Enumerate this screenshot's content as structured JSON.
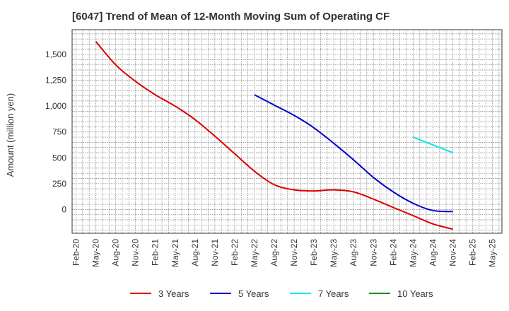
{
  "chart_data": {
    "type": "line",
    "title": "[6047]  Trend of Mean of 12-Month Moving Sum of Operating CF",
    "xlabel": "",
    "ylabel": "Amount (million yen)",
    "ylim": [
      -230,
      1740
    ],
    "grid": true,
    "legend_position": "bottom",
    "x_ticks": [
      "Feb-20",
      "May-20",
      "Aug-20",
      "Nov-20",
      "Feb-21",
      "May-21",
      "Aug-21",
      "Nov-21",
      "Feb-22",
      "May-22",
      "Aug-22",
      "Nov-22",
      "Feb-23",
      "May-23",
      "Aug-23",
      "Nov-23",
      "Feb-24",
      "May-24",
      "Aug-24",
      "Nov-24",
      "Feb-25",
      "May-25"
    ],
    "y_ticks": [
      0,
      250,
      500,
      750,
      1000,
      1250,
      1500
    ],
    "y_tick_labels": [
      "0",
      "250",
      "500",
      "750",
      "1,000",
      "1,250",
      "1,500"
    ],
    "series": [
      {
        "name": "3 Years",
        "color": "#dd0000",
        "x": [
          "May-20",
          "Aug-20",
          "Nov-20",
          "Feb-21",
          "May-21",
          "Aug-21",
          "Nov-21",
          "Feb-22",
          "May-22",
          "Aug-22",
          "Nov-22",
          "Feb-23",
          "May-23",
          "Aug-23",
          "Nov-23",
          "Feb-24",
          "May-24",
          "Aug-24",
          "Nov-24"
        ],
        "values": [
          1625,
          1400,
          1240,
          1110,
          1000,
          870,
          710,
          540,
          370,
          240,
          190,
          180,
          190,
          170,
          100,
          20,
          -60,
          -140,
          -190
        ]
      },
      {
        "name": "5 Years",
        "color": "#0000cc",
        "x": [
          "May-22",
          "Aug-22",
          "Nov-22",
          "Feb-23",
          "May-23",
          "Aug-23",
          "Nov-23",
          "Feb-24",
          "May-24",
          "Aug-24",
          "Nov-24"
        ],
        "values": [
          1110,
          1010,
          910,
          790,
          640,
          480,
          310,
          170,
          60,
          -10,
          -20
        ]
      },
      {
        "name": "7 Years",
        "color": "#00e5ee",
        "x": [
          "May-24",
          "Aug-24",
          "Nov-24"
        ],
        "values": [
          700,
          625,
          550
        ]
      },
      {
        "name": "10 Years",
        "color": "#228b22",
        "x": [],
        "values": []
      }
    ]
  }
}
